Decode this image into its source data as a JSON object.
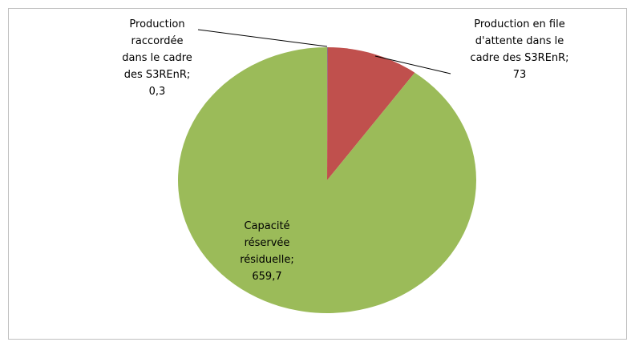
{
  "chart_data": {
    "type": "pie",
    "values": [
      0.3,
      73,
      659.7
    ],
    "value_labels": [
      "Production raccordée dans le cadre des S3REnR; 0,3",
      "Production en file d'attente dans le cadre des S3REnR; 73",
      "Capacité réservée résiduelle; 659,7"
    ],
    "colors": [
      "#4f81bd",
      "#c0504d",
      "#9bbb59"
    ]
  }
}
